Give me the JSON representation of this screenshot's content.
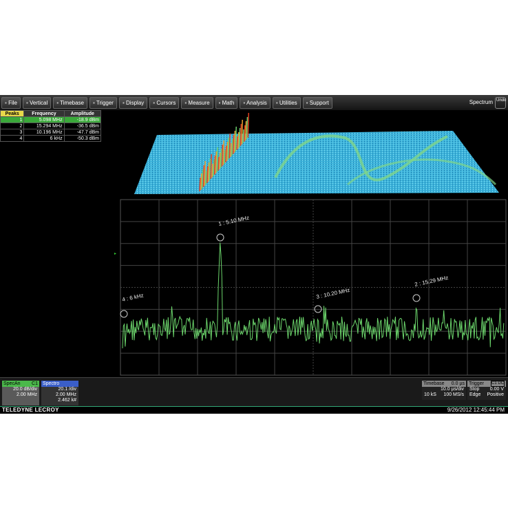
{
  "menu": {
    "items": [
      "File",
      "Vertical",
      "Timebase",
      "Trigger",
      "Display",
      "Cursors",
      "Measure",
      "Math",
      "Analysis",
      "Utilities",
      "Support"
    ],
    "mode": "Spectrum",
    "undo": "Undo"
  },
  "peaks_table": {
    "headers": [
      "Peaks",
      "Frequency",
      "Amplitude"
    ],
    "rows": [
      [
        "1",
        "5.098 MHz",
        "-18.9 dBm"
      ],
      [
        "2",
        "15.294 MHz",
        "-36.5 dBm"
      ],
      [
        "3",
        "10.196 MHz",
        "-47.7 dBm"
      ],
      [
        "4",
        "6 kHz",
        "-50.3 dBm"
      ]
    ]
  },
  "markers": [
    "1 : 5.10 MHz",
    "2 : 15.29 MHz",
    "3 : 10.20 MHz",
    "4 : 6 kHz"
  ],
  "status": {
    "specan": {
      "label": "SpecAn",
      "channel": "C1",
      "scale": "20.0 dB/div",
      "center": "2.00 MHz"
    },
    "spectro": {
      "label": "Spectro",
      "scale": "20.1 /div",
      "center": "2.00 MHz",
      "count": "2.462 k#"
    },
    "timebase": {
      "label": "Timebase",
      "delay": "0.0 µs",
      "scale": "10.0 µs/div",
      "samples": "10 kS",
      "rate": "100 MS/s"
    },
    "trigger": {
      "label": "Trigger",
      "source": "C1 DC",
      "mode": "Stop",
      "level": "0.00 V",
      "type": "Edge",
      "slope": "Positive"
    }
  },
  "footer": {
    "brand": "TELEDYNE LECROY",
    "timestamp": "9/26/2012 12:45:44 PM"
  }
}
